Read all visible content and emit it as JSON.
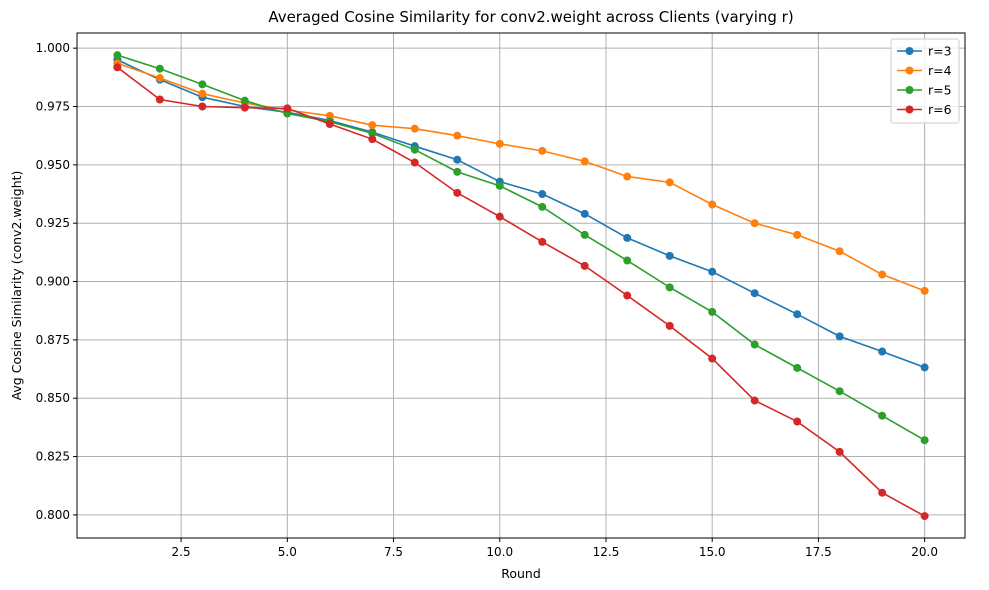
{
  "chart_data": {
    "type": "line",
    "title": "Averaged Cosine Similarity for conv2.weight across Clients (varying r)",
    "xlabel": "Round",
    "ylabel": "Avg Cosine Similarity (conv2.weight)",
    "xlim": [
      0.05,
      20.95
    ],
    "ylim": [
      0.7901,
      1.0065
    ],
    "xticks": [
      2.5,
      5.0,
      7.5,
      10.0,
      12.5,
      15.0,
      17.5,
      20.0
    ],
    "xtick_labels": [
      "2.5",
      "5.0",
      "7.5",
      "10.0",
      "12.5",
      "15.0",
      "17.5",
      "20.0"
    ],
    "yticks": [
      0.8,
      0.825,
      0.85,
      0.875,
      0.9,
      0.925,
      0.95,
      0.975,
      1.0
    ],
    "ytick_labels": [
      "0.800",
      "0.825",
      "0.850",
      "0.875",
      "0.900",
      "0.925",
      "0.950",
      "0.975",
      "1.000"
    ],
    "grid": true,
    "legend_position": "top-right",
    "x": [
      1,
      2,
      3,
      4,
      5,
      6,
      7,
      8,
      9,
      10,
      11,
      12,
      13,
      14,
      15,
      16,
      17,
      18,
      19,
      20
    ],
    "series": [
      {
        "name": "r=3",
        "color": "#1f77b4",
        "values": [
          0.995,
          0.9865,
          0.979,
          0.975,
          0.9725,
          0.969,
          0.964,
          0.958,
          0.9522,
          0.9428,
          0.9375,
          0.929,
          0.9187,
          0.911,
          0.9042,
          0.895,
          0.886,
          0.8765,
          0.87,
          0.8632
        ]
      },
      {
        "name": "r=4",
        "color": "#ff7f0e",
        "values": [
          0.9935,
          0.9872,
          0.9805,
          0.9765,
          0.9735,
          0.971,
          0.967,
          0.9655,
          0.9625,
          0.959,
          0.956,
          0.9515,
          0.945,
          0.9425,
          0.933,
          0.925,
          0.92,
          0.913,
          0.903,
          0.896
        ]
      },
      {
        "name": "r=5",
        "color": "#2ca02c",
        "values": [
          0.997,
          0.9912,
          0.9845,
          0.9775,
          0.972,
          0.9685,
          0.9635,
          0.9565,
          0.947,
          0.941,
          0.932,
          0.92,
          0.909,
          0.8975,
          0.887,
          0.873,
          0.863,
          0.853,
          0.8425,
          0.832
        ]
      },
      {
        "name": "r=6",
        "color": "#d62728",
        "values": [
          0.9918,
          0.978,
          0.975,
          0.9745,
          0.9742,
          0.9675,
          0.961,
          0.951,
          0.938,
          0.9278,
          0.917,
          0.9067,
          0.894,
          0.881,
          0.867,
          0.849,
          0.84,
          0.827,
          0.8095,
          0.7995
        ]
      }
    ]
  }
}
